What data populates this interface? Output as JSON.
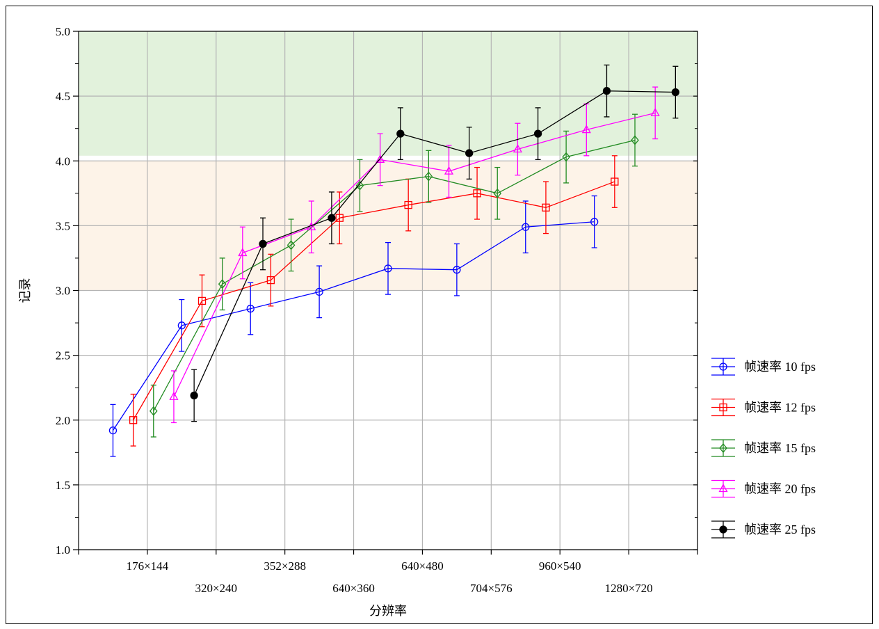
{
  "chart_data": {
    "type": "line",
    "title": "",
    "xlabel": "分辨率",
    "ylabel": "记录",
    "ylim": [
      1.0,
      5.0
    ],
    "yticks": [
      "1.0",
      "1.5",
      "2.0",
      "2.5",
      "3.0",
      "3.5",
      "4.0",
      "4.5",
      "5.0"
    ],
    "categories": [
      "176×144",
      "320×240",
      "352×288",
      "640×360",
      "640×480",
      "704×576",
      "960×540",
      "1280×720"
    ],
    "grid": true,
    "legend_position": "right",
    "bands": [
      {
        "from": 3.0,
        "to": 4.0,
        "color": "#fdf3e8"
      },
      {
        "from": 4.04,
        "to": 5.0,
        "color": "#e2f2dc"
      }
    ],
    "series": [
      {
        "name": "帧速率 10 fps",
        "color": "#0000ff",
        "marker": "circle",
        "values": [
          1.92,
          2.73,
          2.86,
          2.99,
          3.17,
          3.16,
          3.49,
          3.53
        ],
        "errors": [
          0.2,
          0.2,
          0.2,
          0.2,
          0.2,
          0.2,
          0.2,
          0.2
        ]
      },
      {
        "name": "帧速率 12 fps",
        "color": "#ff0000",
        "marker": "square",
        "values": [
          2.0,
          2.92,
          3.08,
          3.56,
          3.66,
          3.75,
          3.64,
          3.84
        ],
        "errors": [
          0.2,
          0.2,
          0.2,
          0.2,
          0.2,
          0.2,
          0.2,
          0.2
        ]
      },
      {
        "name": "帧速率 15 fps",
        "color": "#228b22",
        "marker": "diamond",
        "values": [
          2.07,
          3.05,
          3.35,
          3.81,
          3.88,
          3.75,
          4.03,
          4.16
        ],
        "errors": [
          0.2,
          0.2,
          0.2,
          0.2,
          0.2,
          0.2,
          0.2,
          0.2
        ]
      },
      {
        "name": "帧速率 20 fps",
        "color": "#ff00ff",
        "marker": "triangle",
        "values": [
          2.18,
          3.29,
          3.49,
          4.01,
          3.92,
          4.09,
          4.24,
          4.37
        ],
        "errors": [
          0.2,
          0.2,
          0.2,
          0.2,
          0.2,
          0.2,
          0.2,
          0.2
        ]
      },
      {
        "name": "帧速率 25 fps",
        "color": "#000000",
        "marker": "filled-circle",
        "values": [
          2.19,
          3.36,
          3.56,
          4.21,
          4.06,
          4.21,
          4.54,
          4.53
        ],
        "errors": [
          0.2,
          0.2,
          0.2,
          0.2,
          0.2,
          0.2,
          0.2,
          0.2
        ]
      }
    ]
  }
}
